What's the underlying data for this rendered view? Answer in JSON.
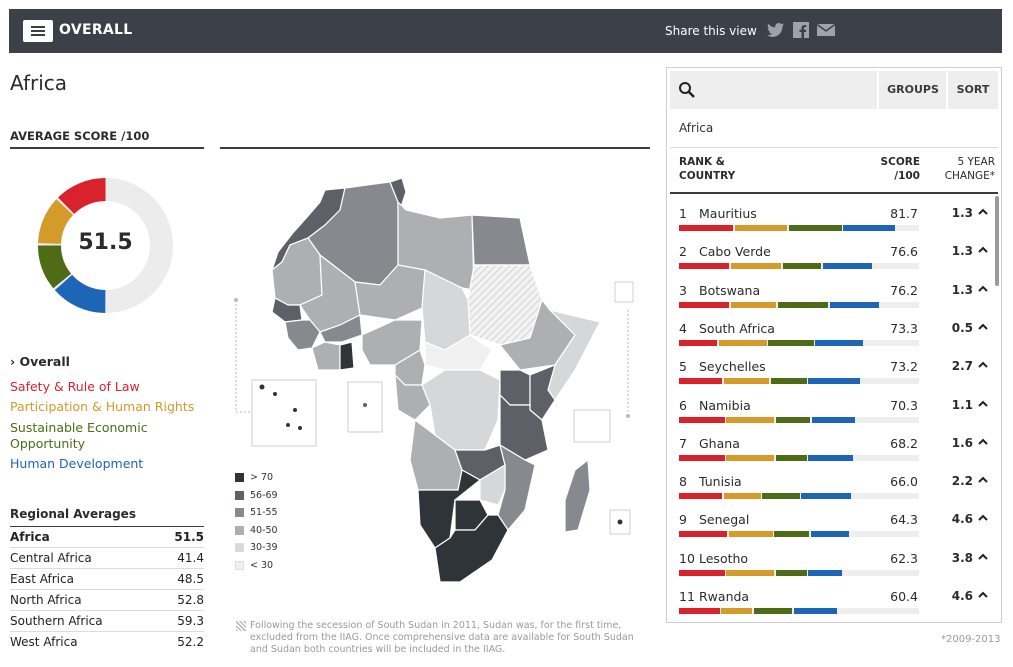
{
  "header": {
    "title": "OVERALL",
    "share_label": "Share this view",
    "social": [
      "twitter-icon",
      "facebook-icon",
      "email-icon"
    ]
  },
  "page": {
    "title": "Africa"
  },
  "average": {
    "label": "AVERAGE SCORE /100",
    "score": "51.5"
  },
  "categories": {
    "overall": "Overall",
    "safety": "Safety & Rule of Law",
    "participation": "Participation & Human Rights",
    "economic": "Sustainable Economic Opportunity",
    "human": "Human Development"
  },
  "colors": {
    "safety": "#d9232c",
    "participation": "#d49a2a",
    "economic": "#4e6b16",
    "human": "#1c65b7"
  },
  "regional": {
    "title": "Regional Averages",
    "rows": [
      {
        "name": "Africa",
        "value": "51.5"
      },
      {
        "name": "Central Africa",
        "value": "41.4"
      },
      {
        "name": "East Africa",
        "value": "48.5"
      },
      {
        "name": "North Africa",
        "value": "52.8"
      },
      {
        "name": "Southern Africa",
        "value": "59.3"
      },
      {
        "name": "West Africa",
        "value": "52.2"
      }
    ]
  },
  "legend": [
    {
      "label": "> 70",
      "color": "#2f3439"
    },
    {
      "label": "56-69",
      "color": "#5d6167"
    },
    {
      "label": "51-55",
      "color": "#86898d"
    },
    {
      "label": "40-50",
      "color": "#adafb2"
    },
    {
      "label": "30-39",
      "color": "#d6d7d9"
    },
    {
      "label": "< 30",
      "color": "#f0f0f0"
    }
  ],
  "footnote": "Following the secession of South Sudan in 2011, Sudan was, for the first time, excluded from the IIAG. Once comprehensive data are available for South Sudan and Sudan both countries will be included in the IIAG.",
  "years_note": "*2009-2013",
  "panel": {
    "groups_label": "GROUPS",
    "sort_label": "SORT",
    "region": "Africa",
    "col_rank_1": "RANK &",
    "col_rank_2": "COUNTRY",
    "col_score_1": "SCORE",
    "col_score_2": "/100",
    "col_change_1": "5 YEAR",
    "col_change_2": "CHANGE*",
    "countries": [
      {
        "rank": "1",
        "name": "Mauritius",
        "score": "81.7",
        "change": "1.3",
        "bars": [
          0.225,
          0.22,
          0.22,
          0.215
        ]
      },
      {
        "rank": "2",
        "name": "Cabo Verde",
        "score": "76.6",
        "change": "1.3",
        "bars": [
          0.21,
          0.21,
          0.16,
          0.205
        ]
      },
      {
        "rank": "3",
        "name": "Botswana",
        "score": "76.2",
        "change": "1.3",
        "bars": [
          0.21,
          0.19,
          0.21,
          0.205
        ]
      },
      {
        "rank": "4",
        "name": "South Africa",
        "score": "73.3",
        "change": "0.5",
        "bars": [
          0.16,
          0.2,
          0.19,
          0.2
        ]
      },
      {
        "rank": "5",
        "name": "Seychelles",
        "score": "73.2",
        "change": "2.7",
        "bars": [
          0.18,
          0.19,
          0.15,
          0.215
        ]
      },
      {
        "rank": "6",
        "name": "Namibia",
        "score": "70.3",
        "change": "1.1",
        "bars": [
          0.19,
          0.2,
          0.145,
          0.18
        ]
      },
      {
        "rank": "7",
        "name": "Ghana",
        "score": "68.2",
        "change": "1.6",
        "bars": [
          0.19,
          0.2,
          0.13,
          0.185
        ]
      },
      {
        "rank": "8",
        "name": "Tunisia",
        "score": "66.0",
        "change": "2.2",
        "bars": [
          0.18,
          0.155,
          0.155,
          0.21
        ]
      },
      {
        "rank": "9",
        "name": "Senegal",
        "score": "64.3",
        "change": "4.6",
        "bars": [
          0.2,
          0.185,
          0.145,
          0.16
        ]
      },
      {
        "rank": "10",
        "name": "Lesotho",
        "score": "62.3",
        "change": "3.8",
        "bars": [
          0.19,
          0.2,
          0.13,
          0.14
        ]
      },
      {
        "rank": "11",
        "name": "Rwanda",
        "score": "60.4",
        "change": "4.6",
        "bars": [
          0.17,
          0.13,
          0.16,
          0.18
        ]
      }
    ]
  }
}
